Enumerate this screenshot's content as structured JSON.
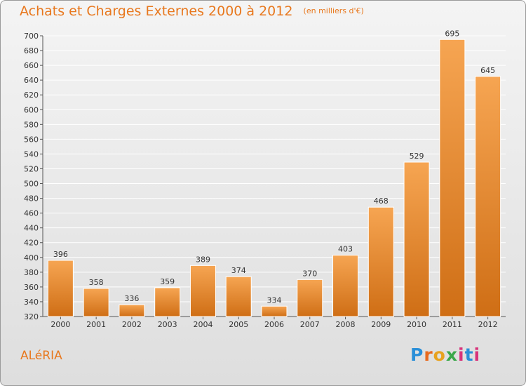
{
  "header": {
    "title": "Achats et Charges Externes 2000 à 2012",
    "unit": "(en milliers d'€)"
  },
  "footer": {
    "commune": "ALéRIA",
    "logo": [
      "P",
      "r",
      "o",
      "x",
      "i",
      "t",
      "i"
    ]
  },
  "colors": {
    "accent": "#e8781e",
    "bar_light": "#f6a552",
    "bar_dark": "#cf6e15",
    "grid": "#ffffff",
    "text": "#333333"
  },
  "chart_data": {
    "type": "bar",
    "title": "Achats et Charges Externes 2000 à 2012",
    "subtitle": "(en milliers d'€)",
    "categories": [
      "2000",
      "2001",
      "2002",
      "2003",
      "2004",
      "2005",
      "2006",
      "2007",
      "2008",
      "2009",
      "2010",
      "2011",
      "2012"
    ],
    "values": [
      396,
      358,
      336,
      359,
      389,
      374,
      334,
      370,
      403,
      468,
      529,
      695,
      645
    ],
    "ylim": [
      320,
      700
    ],
    "yticks": [
      320,
      340,
      360,
      380,
      400,
      420,
      440,
      460,
      480,
      500,
      520,
      540,
      560,
      580,
      600,
      620,
      640,
      660,
      680,
      700
    ],
    "grid": true,
    "data_labels": true
  }
}
